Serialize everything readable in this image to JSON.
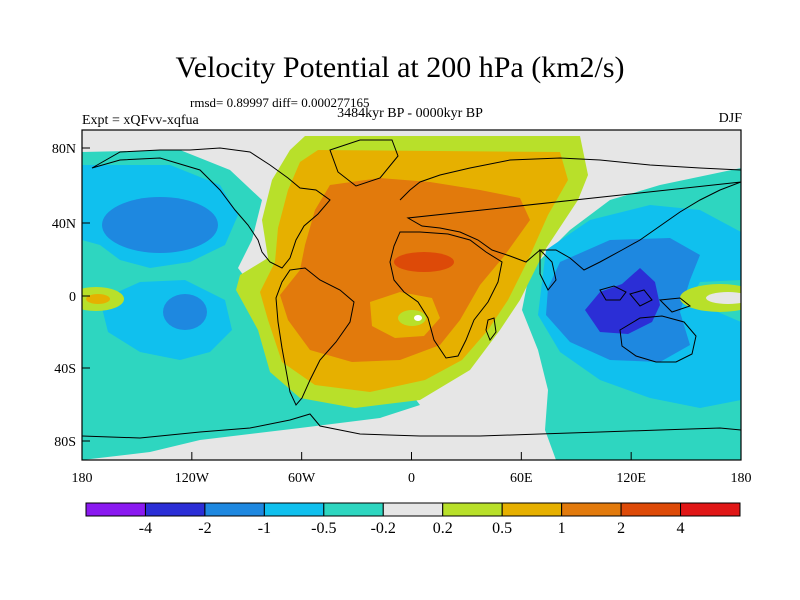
{
  "title": "Velocity Potential at 200 hPa (km2/s)",
  "stats": "rmsd= 0.89997 diff= 0.000277165",
  "period": "3484kyr BP - 0000kyr BP",
  "experiment": "Expt = xQFvv-xqfua",
  "season": "DJF",
  "y_ticks": [
    "80N",
    "40N",
    "0",
    "40S",
    "80S"
  ],
  "x_ticks": [
    "180",
    "120W",
    "60W",
    "0",
    "60E",
    "120E",
    "180"
  ],
  "colorbar": {
    "labels": [
      "-4",
      "-2",
      "-1",
      "-0.5",
      "-0.2",
      "0.2",
      "0.5",
      "1",
      "2",
      "4"
    ],
    "colors": [
      "#8a19f0",
      "#2b2ed6",
      "#1e88e0",
      "#10c0ee",
      "#2ed6c0",
      "#e6e6e6",
      "#b8e02a",
      "#e6b000",
      "#e27a0c",
      "#dd4a08",
      "#e01616"
    ]
  }
}
